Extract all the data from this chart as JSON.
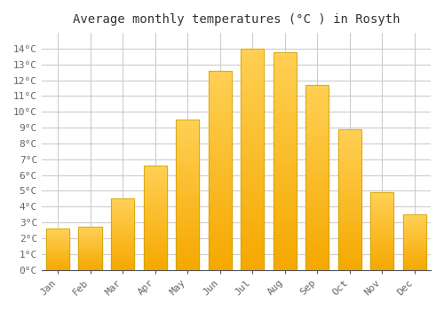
{
  "title": "Average monthly temperatures (°C ) in Rosyth",
  "months": [
    "Jan",
    "Feb",
    "Mar",
    "Apr",
    "May",
    "Jun",
    "Jul",
    "Aug",
    "Sep",
    "Oct",
    "Nov",
    "Dec"
  ],
  "temperatures": [
    2.6,
    2.7,
    4.5,
    6.6,
    9.5,
    12.6,
    14.0,
    13.8,
    11.7,
    8.9,
    4.9,
    3.5
  ],
  "bar_color_bottom": "#F5A800",
  "bar_color_top": "#FFD055",
  "bar_edge_color": "#C8A000",
  "ylim": [
    0,
    15
  ],
  "background_color": "#FFFFFF",
  "plot_bg_color": "#FFFFFF",
  "grid_color": "#CCCCCC",
  "title_fontsize": 10,
  "tick_fontsize": 8,
  "font_family": "monospace"
}
